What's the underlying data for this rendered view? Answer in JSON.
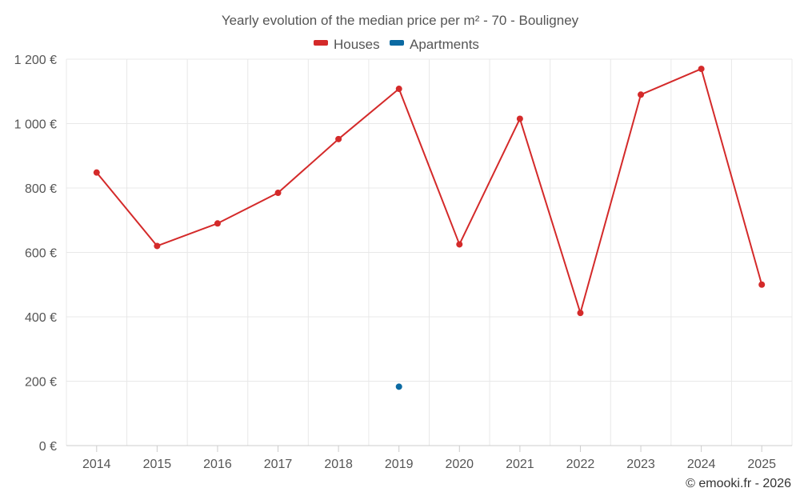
{
  "chart_data": {
    "type": "line",
    "title": "Yearly evolution of the median price per m² - 70 - Bouligney",
    "x": [
      "2014",
      "2015",
      "2016",
      "2017",
      "2018",
      "2019",
      "2020",
      "2021",
      "2022",
      "2023",
      "2024",
      "2025"
    ],
    "ylim": [
      0,
      1200
    ],
    "yticks": [
      0,
      200,
      400,
      600,
      800,
      1000,
      1200
    ],
    "ytick_labels": [
      "0 €",
      "200 €",
      "400 €",
      "600 €",
      "800 €",
      "1 000 €",
      "1 200 €"
    ],
    "grid": true,
    "legend_position": "top-center",
    "series": [
      {
        "name": "Houses",
        "color": "#d42a2a",
        "values": [
          848,
          620,
          690,
          785,
          952,
          1108,
          625,
          1015,
          412,
          1090,
          1170,
          500
        ]
      },
      {
        "name": "Apartments",
        "color": "#0b6aa2",
        "values": [
          null,
          null,
          null,
          null,
          null,
          183,
          null,
          null,
          null,
          null,
          null,
          null
        ]
      }
    ],
    "credit": "© emooki.fr - 2026"
  }
}
